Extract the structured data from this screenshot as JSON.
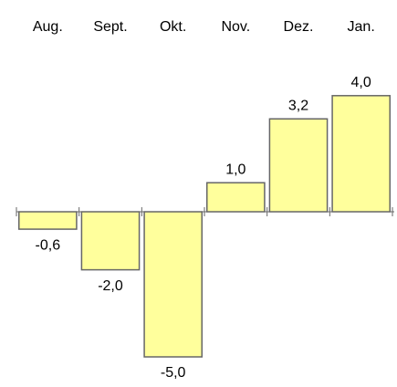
{
  "chart_data": {
    "type": "bar",
    "categories": [
      "Aug.",
      "Sept.",
      "Okt.",
      "Nov.",
      "Dez.",
      "Jan."
    ],
    "values": [
      -0.6,
      -2.0,
      -5.0,
      1.0,
      3.2,
      4.0
    ],
    "value_labels": [
      "-0,6",
      "-2,0",
      "-5,0",
      "1,0",
      "3,2",
      "4,0"
    ],
    "color": "#ffff9c"
  }
}
